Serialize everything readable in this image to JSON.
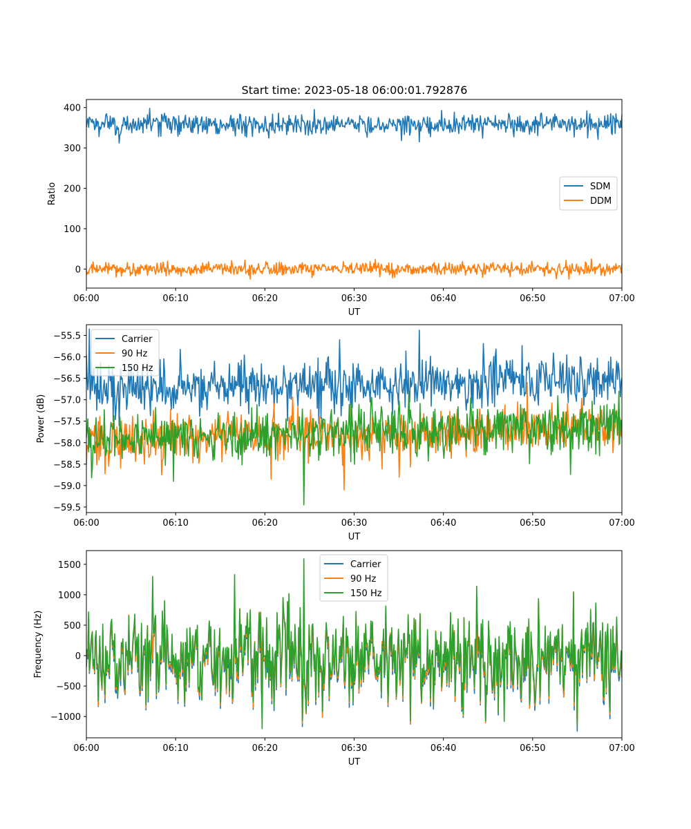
{
  "chart_data": [
    {
      "type": "line",
      "title": "Start time: 2023-05-18 06:00:01.792876",
      "xlabel": "UT",
      "ylabel": "Ratio",
      "x_ticks": [
        "06:00",
        "06:10",
        "06:20",
        "06:30",
        "06:40",
        "06:50",
        "07:00"
      ],
      "y_ticks": [
        "0",
        "100",
        "200",
        "300",
        "400"
      ],
      "xlim_minutes": [
        0,
        60
      ],
      "ylim": [
        -47,
        420
      ],
      "grid": false,
      "legend_position": "center-right",
      "series": [
        {
          "name": "SDM",
          "color": "#1f77b4",
          "mean": 358,
          "std": 13,
          "min": 312,
          "max": 398,
          "spikes": [
            [
              7.1,
              398
            ],
            [
              3.7,
              312
            ],
            [
              25.5,
              395
            ],
            [
              37.3,
              315
            ],
            [
              56.1,
              392
            ]
          ]
        },
        {
          "name": "DDM",
          "color": "#ff7f0e",
          "mean": 0,
          "std": 8,
          "min": -25,
          "max": 25,
          "spikes": [
            [
              18.4,
              -25
            ],
            [
              32.4,
              24
            ],
            [
              56.6,
              25
            ],
            [
              34.3,
              -22
            ],
            [
              3.3,
              -20
            ]
          ]
        }
      ]
    },
    {
      "type": "line",
      "title": "",
      "xlabel": "UT",
      "ylabel": "Power (dB)",
      "x_ticks": [
        "06:00",
        "06:10",
        "06:20",
        "06:30",
        "06:40",
        "06:50",
        "07:00"
      ],
      "y_ticks": [
        "−55.5",
        "−56.0",
        "−56.5",
        "−57.0",
        "−57.5",
        "−58.0",
        "−58.5",
        "−59.0",
        "−59.5"
      ],
      "xlim_minutes": [
        0,
        60
      ],
      "ylim": [
        -59.63,
        -55.25
      ],
      "grid": false,
      "legend_position": "upper-left",
      "series": [
        {
          "name": "Carrier",
          "color": "#1f77b4",
          "mean_start": -56.75,
          "mean_end": -56.5,
          "std": 0.3,
          "min": -57.6,
          "max": -55.35,
          "spikes": [
            [
              0.35,
              -55.35
            ],
            [
              37.3,
              -55.38
            ],
            [
              28.4,
              -55.6
            ]
          ]
        },
        {
          "name": "90 Hz",
          "color": "#ff7f0e",
          "mean_start": -57.95,
          "mean_end": -57.6,
          "std": 0.28,
          "min": -59.1,
          "max": -56.6,
          "spikes": [
            [
              28.9,
              -59.1
            ],
            [
              49.4,
              -56.6
            ],
            [
              20.7,
              -58.85
            ]
          ]
        },
        {
          "name": "150 Hz",
          "color": "#2ca02c",
          "mean_start": -57.9,
          "mean_end": -57.6,
          "std": 0.3,
          "min": -59.45,
          "max": -56.8,
          "spikes": [
            [
              24.4,
              -59.45
            ],
            [
              36.1,
              -56.8
            ],
            [
              9.8,
              -58.9
            ]
          ]
        }
      ]
    },
    {
      "type": "line",
      "title": "",
      "xlabel": "UT",
      "ylabel": "Frequency (Hz)",
      "x_ticks": [
        "06:00",
        "06:10",
        "06:20",
        "06:30",
        "06:40",
        "06:50",
        "07:00"
      ],
      "y_ticks": [
        "1500",
        "1000",
        "500",
        "0",
        "−500",
        "−1000"
      ],
      "xlim_minutes": [
        0,
        60
      ],
      "ylim": [
        -1350,
        1725
      ],
      "grid": false,
      "legend_position": "upper-center",
      "series": [
        {
          "name": "Carrier",
          "color": "#1f77b4",
          "mean": -100,
          "std": 380,
          "min": -1240,
          "max": 1560
        },
        {
          "name": "90 Hz",
          "color": "#ff7f0e",
          "mean": -60,
          "std": 380,
          "min": -1220,
          "max": 1575
        },
        {
          "name": "150 Hz",
          "color": "#2ca02c",
          "mean": -20,
          "std": 380,
          "min": -1200,
          "max": 1590,
          "spikes": [
            [
              24.4,
              1590
            ],
            [
              7.4,
              1300
            ],
            [
              16.6,
              1330
            ],
            [
              19.7,
              -1200
            ],
            [
              43.7,
              1140
            ],
            [
              46.8,
              -1080
            ]
          ]
        }
      ]
    }
  ]
}
